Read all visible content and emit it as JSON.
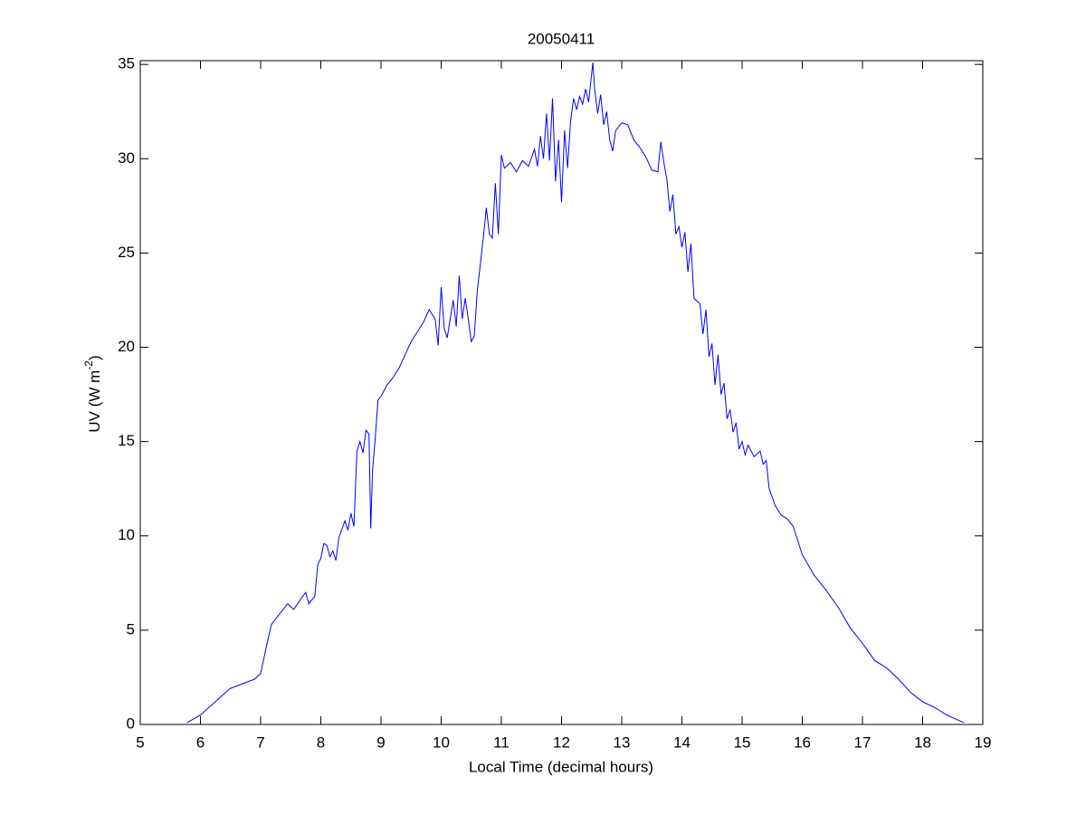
{
  "chart_data": {
    "type": "line",
    "title": "20050411",
    "xlabel": "Local Time (decimal hours)",
    "ylabel": {
      "text": "UV (W m",
      "superscript": "-2",
      "suffix": ")"
    },
    "color": "#0000ff",
    "xlim": [
      5,
      19
    ],
    "xticks": [
      5,
      6,
      7,
      8,
      9,
      10,
      11,
      12,
      13,
      14,
      15,
      16,
      17,
      18,
      19
    ],
    "ylim": [
      0,
      35.2
    ],
    "yticks": [
      0,
      5,
      10,
      15,
      20,
      25,
      30,
      35
    ],
    "x": [
      5.78,
      6.0,
      6.49,
      6.9,
      7.0,
      7.1,
      7.18,
      7.3,
      7.45,
      7.55,
      7.7,
      7.75,
      7.8,
      7.9,
      7.95,
      8.0,
      8.05,
      8.1,
      8.15,
      8.2,
      8.25,
      8.3,
      8.4,
      8.45,
      8.5,
      8.55,
      8.6,
      8.65,
      8.7,
      8.75,
      8.8,
      8.83,
      8.86,
      8.9,
      8.95,
      9.0,
      9.1,
      9.2,
      9.3,
      9.4,
      9.5,
      9.6,
      9.7,
      9.8,
      9.9,
      9.95,
      10.0,
      10.05,
      10.1,
      10.2,
      10.25,
      10.3,
      10.35,
      10.4,
      10.45,
      10.5,
      10.55,
      10.6,
      10.65,
      10.7,
      10.75,
      10.8,
      10.85,
      10.9,
      10.95,
      11.0,
      11.05,
      11.15,
      11.25,
      11.35,
      11.45,
      11.55,
      11.6,
      11.65,
      11.7,
      11.75,
      11.8,
      11.85,
      11.9,
      11.95,
      12.0,
      12.05,
      12.1,
      12.15,
      12.2,
      12.25,
      12.3,
      12.35,
      12.4,
      12.45,
      12.52,
      12.55,
      12.6,
      12.65,
      12.7,
      12.75,
      12.8,
      12.85,
      12.9,
      13.0,
      13.1,
      13.2,
      13.3,
      13.4,
      13.5,
      13.6,
      13.65,
      13.7,
      13.75,
      13.8,
      13.85,
      13.9,
      13.95,
      14.0,
      14.05,
      14.1,
      14.15,
      14.2,
      14.3,
      14.35,
      14.4,
      14.45,
      14.5,
      14.55,
      14.6,
      14.65,
      14.7,
      14.75,
      14.8,
      14.85,
      14.9,
      14.95,
      15.0,
      15.05,
      15.1,
      15.2,
      15.3,
      15.35,
      15.4,
      15.45,
      15.55,
      15.65,
      15.75,
      15.85,
      16.0,
      16.2,
      16.4,
      16.6,
      16.8,
      17.0,
      17.2,
      17.4,
      17.6,
      17.8,
      18.0,
      18.2,
      18.4,
      18.68
    ],
    "values": [
      0.1,
      0.5,
      1.9,
      2.4,
      2.7,
      4.2,
      5.3,
      5.8,
      6.4,
      6.1,
      6.8,
      7.0,
      6.4,
      6.8,
      8.5,
      8.8,
      9.6,
      9.5,
      8.9,
      9.2,
      8.7,
      9.9,
      10.8,
      10.3,
      11.2,
      10.5,
      14.5,
      15.0,
      14.4,
      15.6,
      15.4,
      10.4,
      13.5,
      15.0,
      17.2,
      17.4,
      18.0,
      18.4,
      18.9,
      19.6,
      20.3,
      20.8,
      21.3,
      22.0,
      21.5,
      20.1,
      23.2,
      21.0,
      20.5,
      22.5,
      21.1,
      23.8,
      21.5,
      22.6,
      21.5,
      20.3,
      20.6,
      23.0,
      24.4,
      25.8,
      27.4,
      26.0,
      25.8,
      28.7,
      26.0,
      30.2,
      29.5,
      29.8,
      29.3,
      29.9,
      29.6,
      30.5,
      29.6,
      31.2,
      30.0,
      32.4,
      29.9,
      33.2,
      28.8,
      31.0,
      27.7,
      31.5,
      29.5,
      32.0,
      33.2,
      32.6,
      33.3,
      32.9,
      33.7,
      33.0,
      35.1,
      33.7,
      32.4,
      33.4,
      31.8,
      32.5,
      31.0,
      30.4,
      31.5,
      31.9,
      31.8,
      31.0,
      30.6,
      30.1,
      29.4,
      29.3,
      30.9,
      29.8,
      28.9,
      27.2,
      28.1,
      26.0,
      26.4,
      25.3,
      26.1,
      24.0,
      25.5,
      22.6,
      22.3,
      20.7,
      22.0,
      19.5,
      20.2,
      18.0,
      19.6,
      17.5,
      18.1,
      16.2,
      16.7,
      15.5,
      16.0,
      14.6,
      15.0,
      14.3,
      14.8,
      14.2,
      14.5,
      13.8,
      14.0,
      12.5,
      11.6,
      11.1,
      10.9,
      10.5,
      9.0,
      7.9,
      7.1,
      6.2,
      5.1,
      4.3,
      3.4,
      3.0,
      2.4,
      1.7,
      1.2,
      0.9,
      0.5,
      0.1
    ]
  }
}
